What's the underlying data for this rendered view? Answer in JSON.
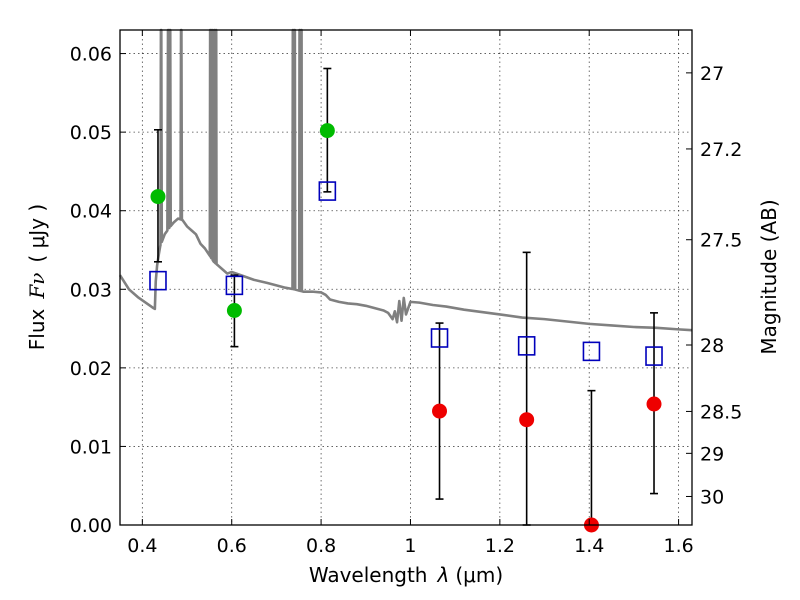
{
  "chart_data": {
    "type": "scatter",
    "xlabel_prefix": "Wavelength",
    "xlabel_symbol": "λ",
    "xlabel_unit": "(μm)",
    "ylabel_prefix": "Flux",
    "ylabel_symbol": "Fν",
    "ylabel_unit": "( μJy )",
    "y2label": "Magnitude (AB)",
    "xlim": [
      0.35,
      1.63
    ],
    "ylim": [
      0.0,
      0.063
    ],
    "x_ticks": [
      0.4,
      0.6,
      0.8,
      1.0,
      1.2,
      1.4,
      1.6
    ],
    "x_tick_labels": [
      "0.4",
      "0.6",
      "0.8",
      "1",
      "1.2",
      "1.4",
      "1.6"
    ],
    "y_ticks": [
      0.0,
      0.01,
      0.02,
      0.03,
      0.04,
      0.05,
      0.06
    ],
    "y_tick_labels": [
      "0.00",
      "0.01",
      "0.02",
      "0.03",
      "0.04",
      "0.05",
      "0.06"
    ],
    "y2_ticks": [
      {
        "mag": 27,
        "label": "27"
      },
      {
        "mag": 27.2,
        "label": "27.2"
      },
      {
        "mag": 27.5,
        "label": "27.5"
      },
      {
        "mag": 28,
        "label": "28"
      },
      {
        "mag": 28.5,
        "label": "28.5"
      },
      {
        "mag": 29,
        "label": "29"
      },
      {
        "mag": 30,
        "label": "30"
      }
    ],
    "grid": true,
    "colors": {
      "detection": "#00bb00",
      "non_detection": "#ee0000",
      "model": "#0000bb",
      "spectrum": "#808080",
      "errorbar": "#000000"
    },
    "observed": [
      {
        "x": 0.435,
        "y": 0.0418,
        "err_low": 0.0083,
        "err_high": 0.0085,
        "kind": "detection"
      },
      {
        "x": 0.606,
        "y": 0.0273,
        "err_low": 0.0046,
        "err_high": 0.0045,
        "kind": "detection"
      },
      {
        "x": 0.814,
        "y": 0.0502,
        "err_low": 0.0078,
        "err_high": 0.0079,
        "kind": "detection"
      },
      {
        "x": 1.065,
        "y": 0.0145,
        "err_low": 0.0112,
        "err_high": 0.0112,
        "kind": "non_detection"
      },
      {
        "x": 1.26,
        "y": 0.0134,
        "err_low": 0.0134,
        "err_high": 0.0213,
        "kind": "non_detection"
      },
      {
        "x": 1.405,
        "y": 0.0,
        "err_low": 0.0,
        "err_high": 0.0171,
        "kind": "non_detection"
      },
      {
        "x": 1.545,
        "y": 0.0154,
        "err_low": 0.0114,
        "err_high": 0.0116,
        "kind": "non_detection"
      }
    ],
    "model_photometry": [
      {
        "x": 0.435,
        "y": 0.0311
      },
      {
        "x": 0.606,
        "y": 0.0305
      },
      {
        "x": 0.814,
        "y": 0.0425
      },
      {
        "x": 1.065,
        "y": 0.0238
      },
      {
        "x": 1.26,
        "y": 0.0228
      },
      {
        "x": 1.405,
        "y": 0.0221
      },
      {
        "x": 1.545,
        "y": 0.0215
      }
    ],
    "spectrum": [
      [
        0.35,
        0.0318
      ],
      [
        0.37,
        0.03
      ],
      [
        0.39,
        0.029
      ],
      [
        0.41,
        0.0282
      ],
      [
        0.42,
        0.0278
      ],
      [
        0.425,
        0.0276
      ],
      [
        0.428,
        0.0275
      ],
      [
        0.43,
        0.031
      ],
      [
        0.433,
        0.033
      ],
      [
        0.437,
        0.0345
      ],
      [
        0.44,
        0.0355
      ],
      [
        0.45,
        0.037
      ],
      [
        0.46,
        0.0378
      ],
      [
        0.47,
        0.0385
      ],
      [
        0.48,
        0.039
      ],
      [
        0.49,
        0.0388
      ],
      [
        0.5,
        0.038
      ],
      [
        0.51,
        0.0375
      ],
      [
        0.52,
        0.037
      ],
      [
        0.53,
        0.0358
      ],
      [
        0.54,
        0.0352
      ],
      [
        0.56,
        0.0335
      ],
      [
        0.57,
        0.033
      ],
      [
        0.58,
        0.0325
      ],
      [
        0.59,
        0.032
      ],
      [
        0.6,
        0.0322
      ],
      [
        0.62,
        0.0318
      ],
      [
        0.65,
        0.0312
      ],
      [
        0.68,
        0.0308
      ],
      [
        0.7,
        0.0305
      ],
      [
        0.72,
        0.0302
      ],
      [
        0.74,
        0.03
      ],
      [
        0.76,
        0.0297
      ],
      [
        0.78,
        0.0297
      ],
      [
        0.8,
        0.0296
      ],
      [
        0.81,
        0.0293
      ],
      [
        0.82,
        0.0287
      ],
      [
        0.84,
        0.0284
      ],
      [
        0.86,
        0.0282
      ],
      [
        0.88,
        0.0281
      ],
      [
        0.9,
        0.0279
      ],
      [
        0.92,
        0.0276
      ],
      [
        0.94,
        0.0273
      ],
      [
        0.95,
        0.027
      ],
      [
        0.96,
        0.0262
      ],
      [
        0.965,
        0.0272
      ],
      [
        0.97,
        0.0258
      ],
      [
        0.975,
        0.0285
      ],
      [
        0.98,
        0.026
      ],
      [
        0.985,
        0.0289
      ],
      [
        0.99,
        0.0268
      ],
      [
        1.0,
        0.0284
      ],
      [
        1.02,
        0.0283
      ],
      [
        1.05,
        0.028
      ],
      [
        1.08,
        0.0278
      ],
      [
        1.12,
        0.0274
      ],
      [
        1.16,
        0.0271
      ],
      [
        1.2,
        0.0268
      ],
      [
        1.25,
        0.0264
      ],
      [
        1.3,
        0.0262
      ],
      [
        1.35,
        0.0259
      ],
      [
        1.4,
        0.0256
      ],
      [
        1.45,
        0.0254
      ],
      [
        1.5,
        0.0252
      ],
      [
        1.55,
        0.0251
      ],
      [
        1.6,
        0.0249
      ],
      [
        1.63,
        0.0248
      ]
    ],
    "emission_lines": [
      {
        "x": 0.442,
        "peak": 0.063,
        "width": 0.003
      },
      {
        "x": 0.458,
        "peak": 0.063,
        "width": 0.004
      },
      {
        "x": 0.462,
        "peak": 0.063,
        "width": 0.003
      },
      {
        "x": 0.487,
        "peak": 0.063,
        "width": 0.003
      },
      {
        "x": 0.552,
        "peak": 0.063,
        "width": 0.002
      },
      {
        "x": 0.556,
        "peak": 0.063,
        "width": 0.003
      },
      {
        "x": 0.561,
        "peak": 0.063,
        "width": 0.002
      },
      {
        "x": 0.565,
        "peak": 0.063,
        "width": 0.002
      },
      {
        "x": 0.737,
        "peak": 0.063,
        "width": 0.002
      },
      {
        "x": 0.741,
        "peak": 0.063,
        "width": 0.002
      },
      {
        "x": 0.752,
        "peak": 0.063,
        "width": 0.002
      },
      {
        "x": 0.756,
        "peak": 0.063,
        "width": 0.002
      }
    ]
  }
}
